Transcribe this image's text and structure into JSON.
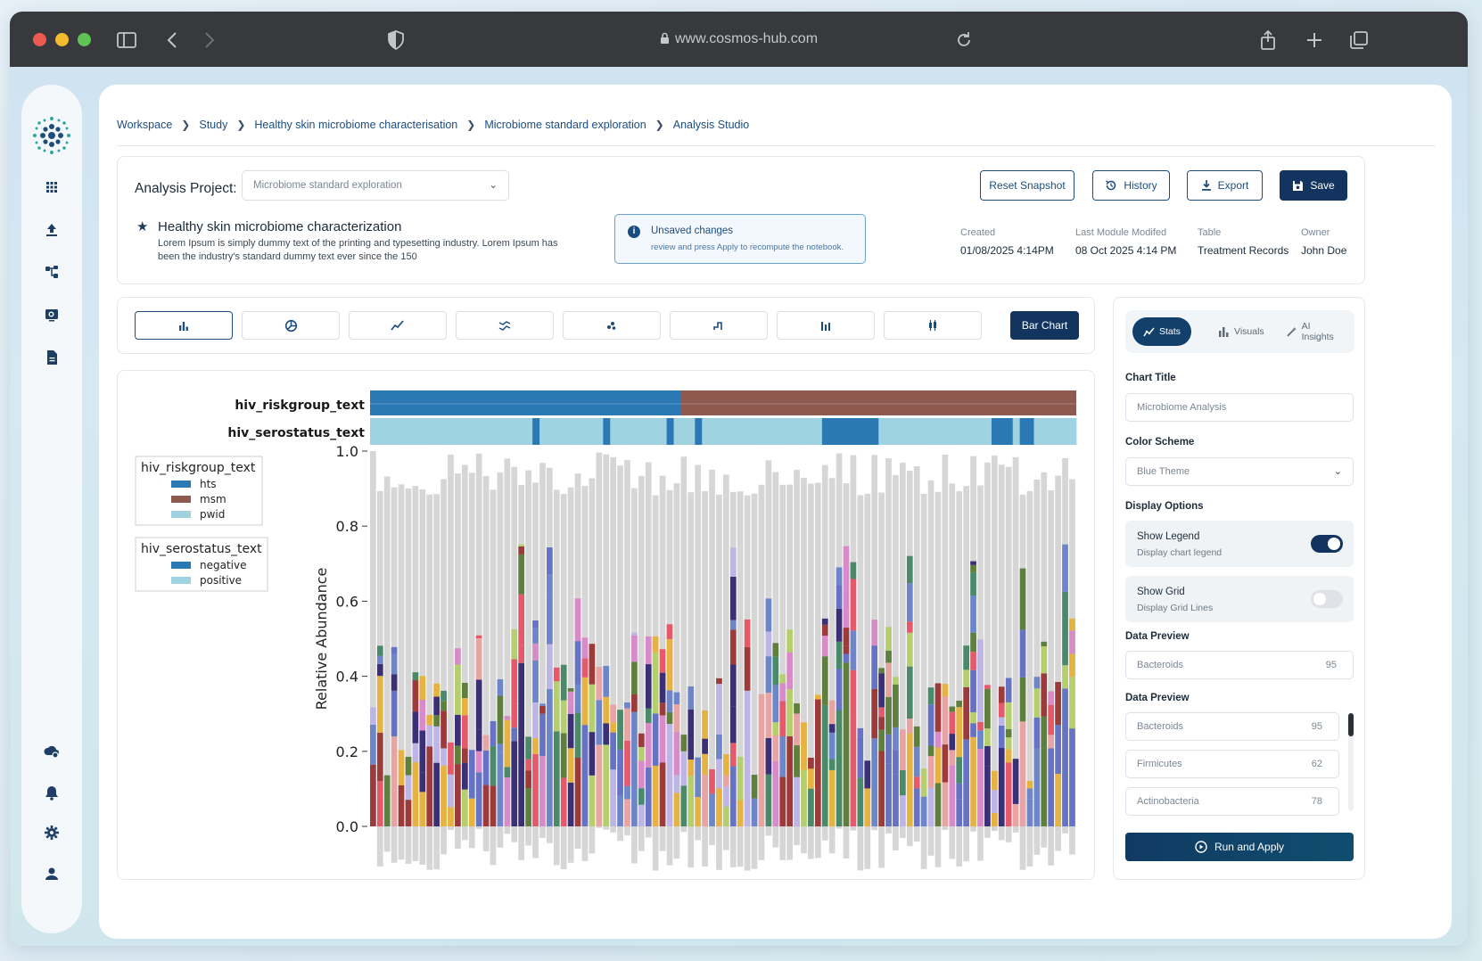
{
  "browser": {
    "url": "www.cosmos-hub.com"
  },
  "breadcrumb": [
    "Workspace",
    "Study",
    "Healthy skin microbiome characterisation",
    "Microbiome standard exploration",
    "Analysis Studio"
  ],
  "project": {
    "label": "Analysis Project:",
    "selected": "Microbiome standard exploration",
    "title": "Healthy skin microbiome characterization",
    "description": "Lorem Ipsum is simply dummy text of the printing and typesetting industry. Lorem Ipsum has been the industry's standard dummy text ever since the 150"
  },
  "actions": {
    "reset": "Reset Snapshot",
    "history": "History",
    "export": "Export",
    "save": "Save"
  },
  "notice": {
    "title": "Unsaved changes",
    "text": "review and press Apply to recompute the notebook."
  },
  "meta": {
    "created_label": "Created",
    "created": "01/08/2025  4:14PM",
    "modified_label": "Last Module Modifed",
    "modified": "08 Oct 2025  4:14 PM",
    "table_label": "Table",
    "table": "Treatment Records",
    "owner_label": "Owner",
    "owner": "John Doe"
  },
  "toolbar": {
    "icons": [
      "bar-chart-icon",
      "pie-chart-icon",
      "line-chart-icon",
      "area-chart-icon",
      "scatter-icon",
      "step-chart-icon",
      "grouped-bar-icon",
      "boxplot-icon"
    ],
    "active_label": "Bar Chart"
  },
  "panel": {
    "tabs": [
      "Stats",
      "Visuals",
      "AI Insights"
    ],
    "chart_title_label": "Chart Title",
    "chart_title_placeholder": "Microbiome Analysis",
    "color_scheme_label": "Color Scheme",
    "color_scheme_value": "Blue Theme",
    "display_options_label": "Display Options",
    "legend": {
      "title": "Show Legend",
      "sub": "Display chart legend",
      "on": true
    },
    "grid": {
      "title": "Show Grid",
      "sub": "Display Grid Lines",
      "on": false
    },
    "data_preview_label": "Data Preview",
    "preview_single": {
      "name": "Bacteroids",
      "value": "95"
    },
    "data_preview_label_2": "Data Preview",
    "preview_list": [
      {
        "name": "Bacteroids",
        "value": "95"
      },
      {
        "name": "Firmicutes",
        "value": "62"
      },
      {
        "name": "Actinobacteria",
        "value": "78"
      }
    ],
    "run_label": "Run and Apply"
  },
  "chart_data": {
    "type": "bar",
    "stacked": true,
    "ylabel": "Relative Abundance",
    "ylim": [
      0,
      1.0
    ],
    "yticks": [
      "1.0",
      "0.8",
      "0.6",
      "0.4",
      "0.2",
      "0.0"
    ],
    "annotation_rows": [
      "hiv_riskgroup_text",
      "hiv_serostatus_text"
    ],
    "legends": [
      {
        "title": "hiv_riskgroup_text",
        "entries": [
          {
            "label": "hts",
            "color": "#2a78b4"
          },
          {
            "label": "msm",
            "color": "#8e5a4f"
          },
          {
            "label": "pwid",
            "color": "#9fd3e2"
          }
        ]
      },
      {
        "title": "hiv_serostatus_text",
        "entries": [
          {
            "label": "negative",
            "color": "#2a78b4"
          },
          {
            "label": "positive",
            "color": "#9fd3e2"
          }
        ]
      }
    ],
    "sample_count": 100,
    "riskgroup_split": 0.44,
    "taxa_colors": [
      "#9c3b3a",
      "#e6b242",
      "#6672c4",
      "#d98ac8",
      "#b6cf6e",
      "#5f7f3e",
      "#bcb5e6",
      "#e5596a",
      "#3b2f76",
      "#6c86c9",
      "#e8a3a3",
      "#4a8a6a"
    ],
    "background_color": "#d6d6d6",
    "max_colored_height": 0.76
  }
}
